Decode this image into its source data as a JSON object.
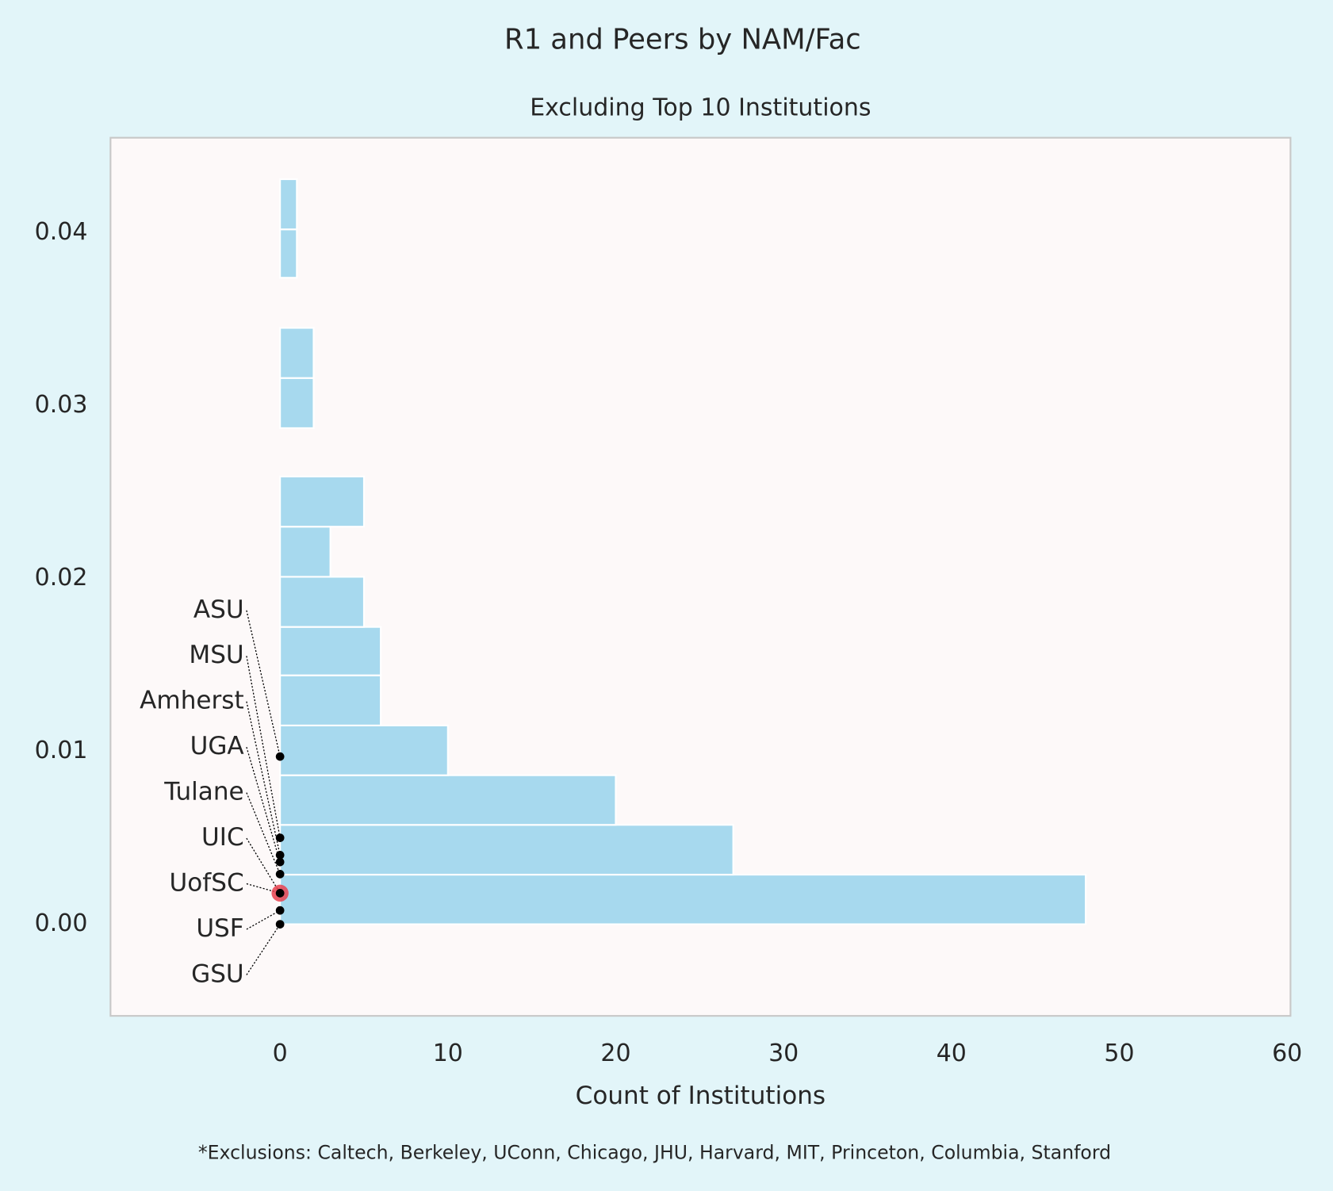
{
  "chart_data": {
    "type": "histogram",
    "orientation": "horizontal",
    "title": "R1 and Peers by NAM/Fac",
    "subtitle": "Excluding Top 10 Institutions",
    "x_label": "Count of Institutions",
    "footnote": "*Exclusions: Caltech, Berkeley, UConn, Chicago, JHU, Harvard, MIT, Princeton, Columbia, Stanford",
    "bins": [
      0,
      0.00287,
      0.00575,
      0.00862,
      0.0115,
      0.0144,
      0.0172,
      0.0201,
      0.023,
      0.0259,
      0.0287,
      0.0316,
      0.0345,
      0.0374,
      0.0402,
      0.0431
    ],
    "counts": [
      48,
      27,
      20,
      10,
      6,
      6,
      5,
      3,
      5,
      0,
      2,
      2,
      0,
      1,
      1
    ],
    "color": "#a7d9ee",
    "points": [
      {
        "name": "ASU",
        "value": 0.0097
      },
      {
        "name": "MSU",
        "value": 0.005
      },
      {
        "name": "Amherst",
        "value": 0.004
      },
      {
        "name": "UGA",
        "value": 0.0036
      },
      {
        "name": "Tulane",
        "value": 0.0029
      },
      {
        "name": "UIC",
        "value": 0.0018
      },
      {
        "name": "UofSC",
        "value": 0.0018
      },
      {
        "name": "USF",
        "value": 0.0008
      },
      {
        "name": "GSU",
        "value": 0
      }
    ],
    "point_color": "#000000",
    "highlight": "UofSC",
    "highlight_color": "#e8424f",
    "xlim": [
      -10.1,
      60.2
    ],
    "xticks": [
      0,
      10,
      20,
      30,
      40,
      50,
      60
    ],
    "ylim": [
      -0.0053,
      0.0455
    ],
    "yticks": [
      {
        "value": 0,
        "label": "0.00"
      },
      0.01,
      0.02,
      0.03,
      0.04
    ],
    "grid": false
  }
}
